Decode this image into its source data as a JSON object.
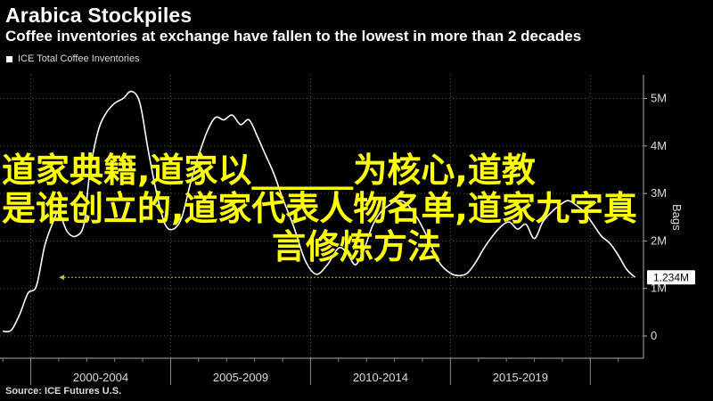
{
  "header": {
    "title": "Arabica Stockpiles",
    "subtitle": "Coffee inventories at exchange have fallen to the lowest in more than 2 decades"
  },
  "legend": {
    "label": "ICE Total Coffee Inventories"
  },
  "source": "Source: ICE Futures U.S.",
  "overlay": {
    "line1": "道家典籍,道家以______为核心,道教",
    "line2": "是谁创立的,道家代表人物名单,道家九字真",
    "line3": "言修炼方法"
  },
  "colors": {
    "background": "#000000",
    "line": "#ffffff",
    "marker": "#9acd32",
    "overlay_text": "#ffff00"
  },
  "chart_data": {
    "type": "line",
    "title": "Arabica Stockpiles",
    "subtitle": "Coffee inventories at exchange have fallen to the lowest in more than 2 decades",
    "ylabel": "Bags",
    "ylim": [
      0,
      5.5
    ],
    "xlim": [
      1998.9,
      2021.9
    ],
    "y_ticks": [
      0,
      1,
      2,
      3,
      4,
      5
    ],
    "y_tick_labels": [
      "0",
      "1M",
      "2M",
      "3M",
      "4M",
      "5M"
    ],
    "x_tick_labels": [
      "2000-2004",
      "2005-2009",
      "2010-2014",
      "2015-2019"
    ],
    "x_tick_centers": [
      2002.5,
      2007.5,
      2012.5,
      2017.5
    ],
    "grid": true,
    "legend_position": "top-left",
    "series": [
      {
        "name": "ICE Total Coffee Inventories",
        "x": [
          1999.0,
          1999.3,
          1999.6,
          1999.9,
          2000.2,
          2000.5,
          2000.8,
          2001.0,
          2001.3,
          2001.6,
          2001.9,
          2002.1,
          2002.4,
          2002.7,
          2003.0,
          2003.3,
          2003.6,
          2003.9,
          2004.2,
          2004.5,
          2004.8,
          2005.1,
          2005.4,
          2005.7,
          2006.0,
          2006.3,
          2006.6,
          2006.9,
          2007.2,
          2007.5,
          2007.8,
          2008.1,
          2008.4,
          2008.7,
          2009.0,
          2009.4,
          2009.8,
          2010.2,
          2010.6,
          2011.0,
          2011.3,
          2011.6,
          2011.9,
          2012.2,
          2012.5,
          2012.8,
          2013.1,
          2013.4,
          2013.8,
          2014.2,
          2014.6,
          2015.0,
          2015.3,
          2015.6,
          2015.9,
          2016.2,
          2016.5,
          2016.8,
          2017.1,
          2017.4,
          2017.7,
          2018.0,
          2018.3,
          2018.6,
          2018.9,
          2019.2,
          2019.5,
          2019.8,
          2020.1,
          2020.4,
          2020.7,
          2021.0,
          2021.3,
          2021.6
        ],
        "values": [
          0.1,
          0.12,
          0.45,
          0.9,
          1.05,
          1.9,
          2.4,
          2.6,
          2.2,
          2.1,
          2.35,
          3.4,
          4.3,
          4.7,
          4.9,
          5.0,
          5.15,
          4.9,
          3.9,
          3.0,
          2.35,
          2.25,
          2.5,
          3.2,
          3.8,
          4.3,
          4.6,
          4.55,
          4.65,
          4.45,
          4.55,
          4.2,
          3.8,
          3.4,
          2.9,
          2.3,
          1.6,
          1.3,
          1.5,
          1.85,
          1.75,
          1.5,
          1.8,
          2.3,
          2.6,
          2.75,
          2.85,
          2.8,
          2.5,
          2.05,
          1.55,
          1.32,
          1.27,
          1.32,
          1.55,
          1.85,
          2.1,
          2.3,
          2.4,
          2.25,
          2.35,
          2.05,
          2.4,
          2.6,
          2.75,
          2.85,
          2.75,
          2.6,
          2.35,
          2.1,
          1.95,
          1.7,
          1.4,
          1.234
        ]
      }
    ],
    "annotations": [
      {
        "type": "last_value_marker",
        "value": 1.234,
        "label": "1.234M"
      }
    ]
  }
}
